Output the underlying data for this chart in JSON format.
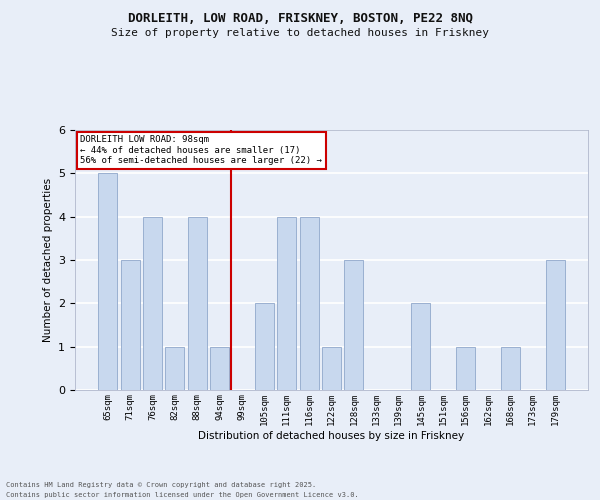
{
  "title1": "DORLEITH, LOW ROAD, FRISKNEY, BOSTON, PE22 8NQ",
  "title2": "Size of property relative to detached houses in Friskney",
  "categories": [
    "65sqm",
    "71sqm",
    "76sqm",
    "82sqm",
    "88sqm",
    "94sqm",
    "99sqm",
    "105sqm",
    "111sqm",
    "116sqm",
    "122sqm",
    "128sqm",
    "133sqm",
    "139sqm",
    "145sqm",
    "151sqm",
    "156sqm",
    "162sqm",
    "168sqm",
    "173sqm",
    "179sqm"
  ],
  "values": [
    5,
    3,
    4,
    1,
    4,
    1,
    0,
    2,
    4,
    4,
    1,
    3,
    0,
    0,
    2,
    0,
    1,
    0,
    1,
    0,
    3
  ],
  "bar_color": "#c8d8ee",
  "bar_edge_color": "#9ab0d0",
  "reference_line_index": 6,
  "annotation_title": "DORLEITH LOW ROAD: 98sqm",
  "annotation_line1": "← 44% of detached houses are smaller (17)",
  "annotation_line2": "56% of semi-detached houses are larger (22) →",
  "xlabel": "Distribution of detached houses by size in Friskney",
  "ylabel": "Number of detached properties",
  "ylim": [
    0,
    6
  ],
  "yticks": [
    0,
    1,
    2,
    3,
    4,
    5,
    6
  ],
  "footer1": "Contains HM Land Registry data © Crown copyright and database right 2025.",
  "footer2": "Contains public sector information licensed under the Open Government Licence v3.0.",
  "bg_color": "#e8eef8",
  "plot_bg_color": "#e8eef8",
  "grid_color": "#ffffff",
  "ref_line_color": "#cc0000",
  "annotation_box_color": "#ffffff",
  "annotation_box_edge": "#cc0000",
  "title1_fontsize": 9,
  "title2_fontsize": 8
}
